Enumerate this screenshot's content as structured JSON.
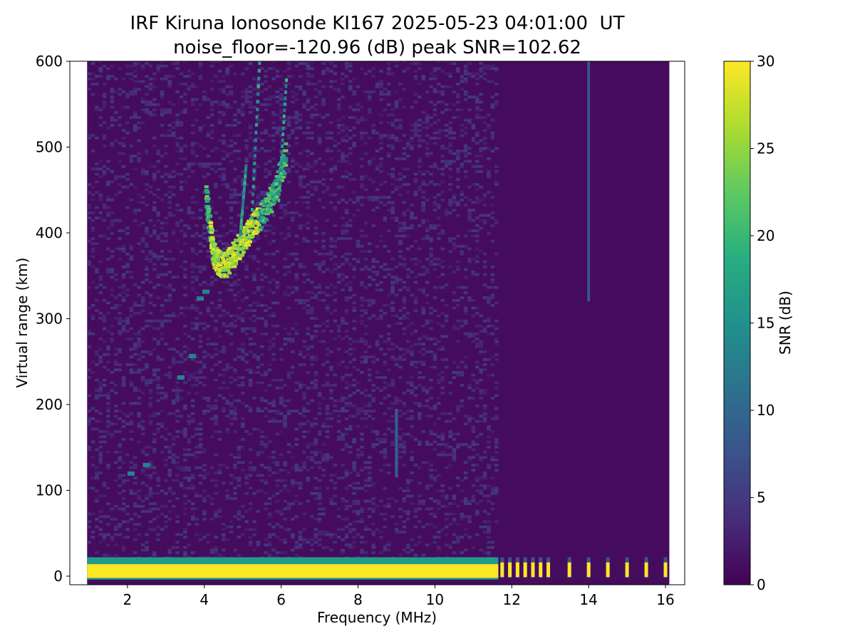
{
  "chart_data": {
    "type": "heatmap",
    "title": "IRF Kiruna Ionosonde KI167 2025-05-23 04:01:00  UT",
    "subtitle": "noise_floor=-120.96 (dB) peak SNR=102.62",
    "xlabel": "Frequency (MHz)",
    "ylabel": "Virtual range (km)",
    "xlim": [
      0.5,
      16.5
    ],
    "ylim": [
      -10,
      600
    ],
    "xticks": [
      "2",
      "4",
      "6",
      "8",
      "10",
      "12",
      "14",
      "16"
    ],
    "yticks": [
      "0",
      "100",
      "200",
      "300",
      "400",
      "500",
      "600"
    ],
    "colorbar": {
      "label": "SNR (dB)",
      "range": [
        0,
        30
      ],
      "ticks": [
        "0",
        "5",
        "10",
        "15",
        "20",
        "25",
        "30"
      ],
      "colormap": "viridis"
    },
    "data_freq_range_mhz": [
      0.95,
      16.1
    ],
    "ground_echo_band_km": [
      0,
      18
    ],
    "f_trace": [
      {
        "f": 4.0,
        "h": 430
      },
      {
        "f": 4.1,
        "h": 390
      },
      {
        "f": 4.2,
        "h": 360
      },
      {
        "f": 4.3,
        "h": 350
      },
      {
        "f": 4.5,
        "h": 348
      },
      {
        "f": 4.7,
        "h": 358
      },
      {
        "f": 4.9,
        "h": 372
      },
      {
        "f": 5.1,
        "h": 385
      },
      {
        "f": 5.3,
        "h": 398
      },
      {
        "f": 5.5,
        "h": 410
      },
      {
        "f": 5.7,
        "h": 425
      },
      {
        "f": 5.9,
        "h": 450
      },
      {
        "f": 6.1,
        "h": 480
      }
    ],
    "pulses_mhz": [
      11.75,
      11.95,
      12.15,
      12.35,
      12.55,
      12.75,
      12.95,
      13.5,
      14.0,
      14.5,
      15.0,
      15.5,
      16.0
    ],
    "colors": {
      "low": "#440154",
      "high": "#fde725"
    }
  }
}
